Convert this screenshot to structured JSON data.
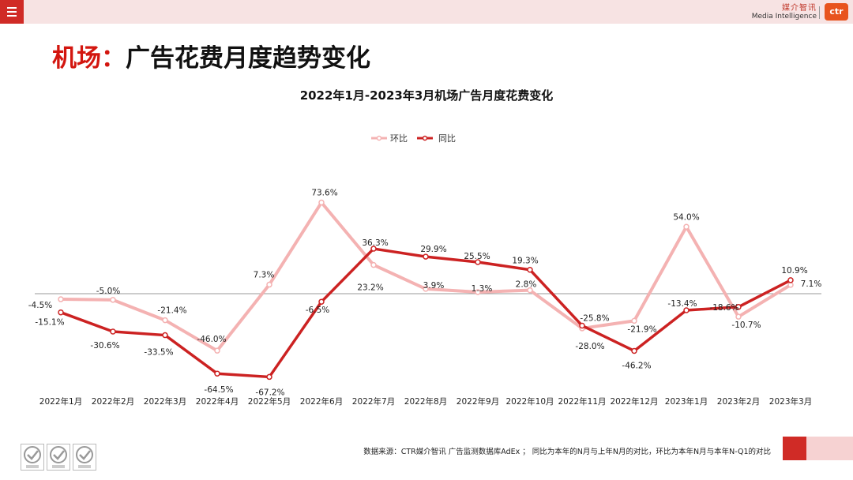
{
  "header": {
    "menu_icon": "hamburger-menu-icon",
    "brand_cn": "媒介智讯",
    "brand_en": "Media Intelligence",
    "logo_text": "ctr"
  },
  "page_title": {
    "red_part": "机场：",
    "black_part": "广告花费月度趋势变化"
  },
  "footer": {
    "source_note": "数据来源：CTR媒介智讯 广告监测数据库AdEx ； 同比为本年的N月与上年N月的对比，环比为本年N月与本年N-Q1的对比",
    "cert_icons": [
      "sgs-cert-icon",
      "sgs-cert-icon",
      "sgs-cert-icon"
    ]
  },
  "colors": {
    "accent": "#d02b26",
    "series_mom": "#f4b2b2",
    "series_yoy": "#cc2222"
  },
  "chart_data": {
    "type": "line",
    "title": "2022年1月-2023年3月机场广告月度花费变化",
    "categories": [
      "2022年1月",
      "2022年2月",
      "2022年3月",
      "2022年4月",
      "2022年5月",
      "2022年6月",
      "2022年7月",
      "2022年8月",
      "2022年9月",
      "2022年10月",
      "2022年11月",
      "2022年12月",
      "2023年1月",
      "2023年2月",
      "2023年3月"
    ],
    "series": [
      {
        "name": "环比",
        "values": [
          -4.5,
          -5.0,
          -21.4,
          -46.0,
          7.3,
          73.6,
          23.2,
          3.9,
          1.3,
          2.8,
          -28.0,
          -21.9,
          54.0,
          -18.6,
          7.1
        ],
        "labels": [
          "-4.5%",
          "-5.0%",
          "-21.4%",
          "-46.0%",
          "7.3%",
          "73.6%",
          "23.2%",
          "3.9%",
          "1.3%",
          "2.8%",
          "-28.0%",
          "-21.9%",
          "54.0%",
          "-18.6%",
          "7.1%"
        ]
      },
      {
        "name": "同比",
        "values": [
          -15.1,
          -30.6,
          -33.5,
          -64.5,
          -67.2,
          -6.5,
          36.3,
          29.9,
          25.5,
          19.3,
          -25.8,
          -46.2,
          -13.4,
          -10.7,
          10.9
        ],
        "labels": [
          "-15.1%",
          "-30.6%",
          "-33.5%",
          "-64.5%",
          "-67.2%",
          "-6.5%",
          "36.3%",
          "29.9%",
          "25.5%",
          "19.3%",
          "-25.8%",
          "-46.2%",
          "-13.4%",
          "-10.7%",
          "10.9%"
        ]
      }
    ],
    "legend_position": "top",
    "grid": false,
    "ylim": [
      -85,
      110
    ]
  }
}
